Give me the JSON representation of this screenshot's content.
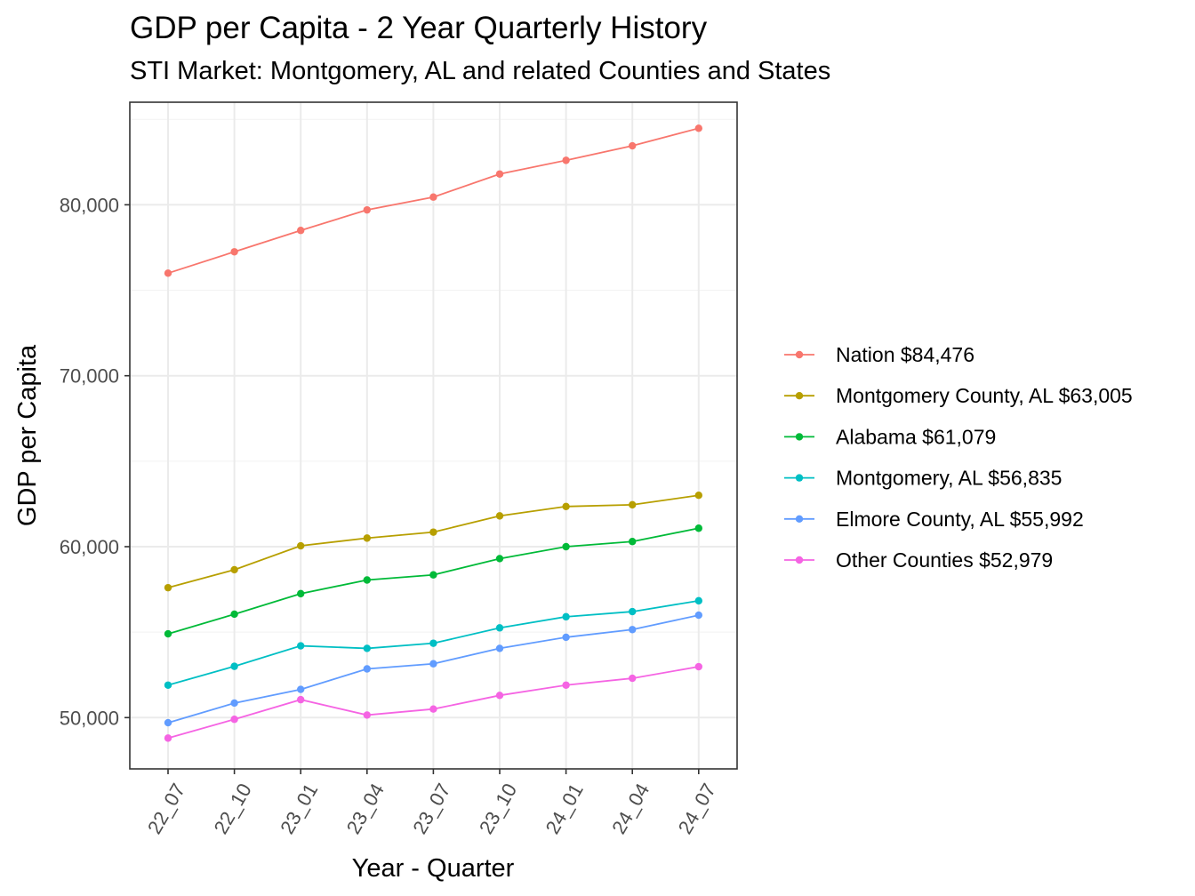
{
  "chart_data": {
    "type": "line",
    "title": "GDP per Capita - 2 Year Quarterly History",
    "subtitle": "STI Market: Montgomery, AL and related Counties and States",
    "xlabel": "Year - Quarter",
    "ylabel": "GDP per Capita",
    "categories": [
      "22_07",
      "22_10",
      "23_01",
      "23_04",
      "23_07",
      "23_10",
      "24_01",
      "24_04",
      "24_07"
    ],
    "ylim": [
      47000,
      86000
    ],
    "yticks": [
      50000,
      60000,
      70000,
      80000
    ],
    "ytick_labels": [
      "50,000",
      "60,000",
      "70,000",
      "80,000"
    ],
    "grid": true,
    "legend_position": "right",
    "series": [
      {
        "name": "Nation $84,476",
        "color": "#F8766D",
        "values": [
          76000,
          77250,
          78500,
          79700,
          80450,
          81800,
          82600,
          83450,
          84476
        ]
      },
      {
        "name": "Montgomery County, AL $63,005",
        "color": "#B79F00",
        "values": [
          57600,
          58650,
          60050,
          60500,
          60850,
          61800,
          62350,
          62450,
          63005
        ]
      },
      {
        "name": "Alabama $61,079",
        "color": "#00BA38",
        "values": [
          54900,
          56050,
          57250,
          58050,
          58350,
          59300,
          60000,
          60300,
          61079
        ]
      },
      {
        "name": "Montgomery, AL $56,835",
        "color": "#00BFC4",
        "values": [
          51900,
          53000,
          54200,
          54050,
          54350,
          55250,
          55900,
          56200,
          56835
        ]
      },
      {
        "name": "Elmore County, AL $55,992",
        "color": "#619CFF",
        "values": [
          49700,
          50850,
          51650,
          52850,
          53150,
          54050,
          54700,
          55150,
          55992
        ]
      },
      {
        "name": "Other Counties $52,979",
        "color": "#F564E3",
        "values": [
          48800,
          49900,
          51050,
          50150,
          50500,
          51300,
          51900,
          52300,
          52979
        ]
      }
    ]
  }
}
